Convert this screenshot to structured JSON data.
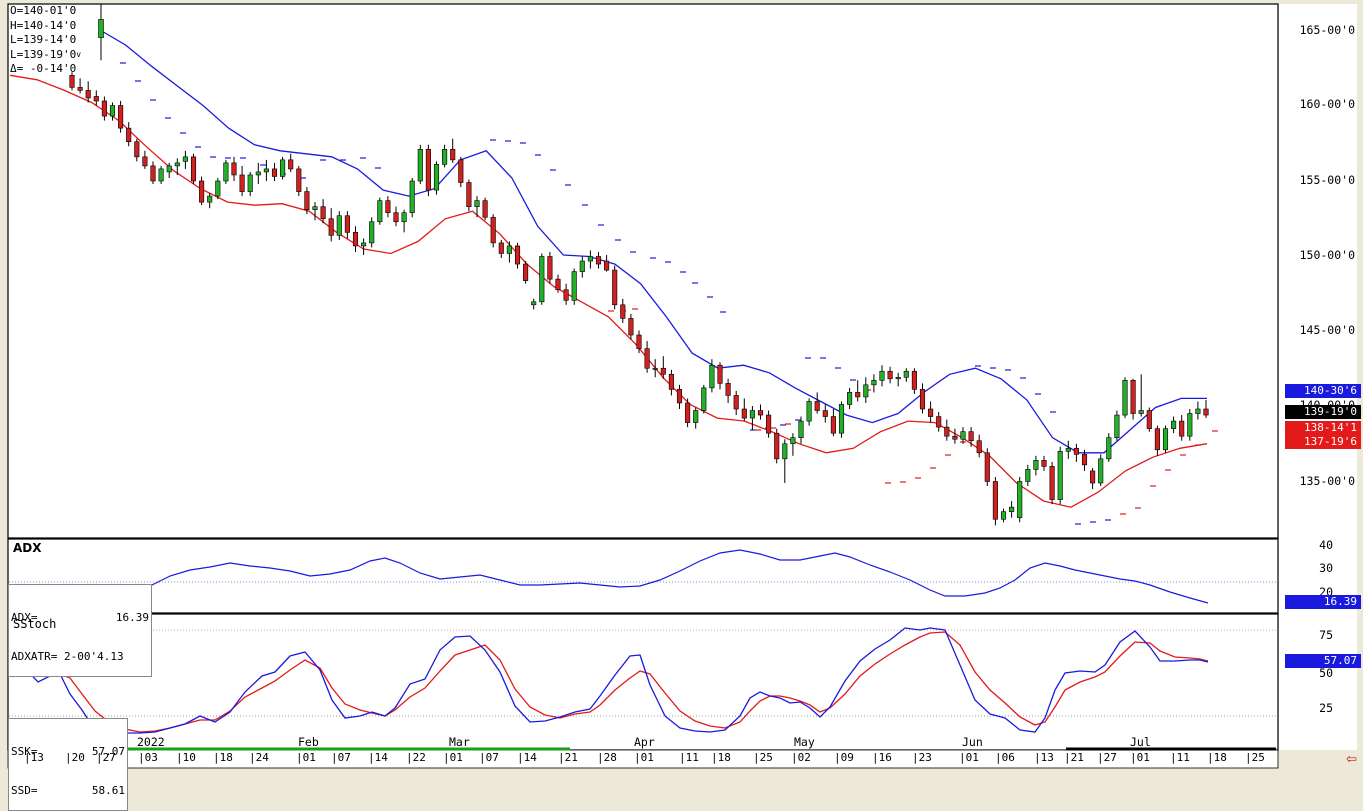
{
  "ohlc_box": {
    "open": "O=140-01'0",
    "high": "H=140-14'0",
    "low": "L=139-14'0",
    "last": "L=139-19'0",
    "last_flag": "v",
    "change": "Δ= -0-14'0"
  },
  "price_tags": {
    "upper": "140-30'6",
    "current": "139-19'0",
    "lower1": "138-14'1",
    "lower2": "137-19'6"
  },
  "adx_panel": {
    "title": "ADX",
    "adx_label": "ADX=",
    "adx_value": "16.39",
    "adxatr_label": "ADXATR=",
    "adxatr_value": "2-00'4.13",
    "tag": "16.39",
    "axis": [
      "40",
      "30",
      "20"
    ]
  },
  "stoch_panel": {
    "title": "SStoch",
    "ssk_label": "SSK=",
    "ssk_value": "57.07",
    "ssd_label": "SSD=",
    "ssd_value": "58.61",
    "tag": "57.07",
    "axis": [
      "75",
      "50",
      "25"
    ]
  },
  "colors": {
    "up": "#22b02a",
    "down": "#d02020",
    "upper_band": "#1a1adf",
    "lower_band": "#e21a1a",
    "tag_blue": "#1a1adf",
    "tag_red": "#e21a1a",
    "tag_black": "#000000"
  },
  "x_axis": {
    "year": "2022",
    "months": [
      "Feb",
      "Mar",
      "Apr",
      "May",
      "Jun",
      "Jul"
    ],
    "ticks": [
      "13",
      "20",
      "27",
      "03",
      "10",
      "18",
      "24",
      "01",
      "07",
      "14",
      "22",
      "01",
      "07",
      "14",
      "21",
      "28",
      "01",
      "11",
      "18",
      "25",
      "02",
      "09",
      "16",
      "23",
      "01",
      "06",
      "13",
      "21",
      "27",
      "01",
      "11",
      "18",
      "25"
    ]
  },
  "chart_data": {
    "type": "candlestick",
    "price_axis": [
      "165-00'0",
      "160-00'0",
      "155-00'0",
      "150-00'0",
      "145-00'0",
      "140-00'0",
      "135-00'0"
    ],
    "ylim": [
      132,
      167
    ],
    "last_bar": {
      "open": 140.03,
      "high": 140.44,
      "low": 139.44,
      "close": 139.59
    },
    "candles": [
      [
        162.0,
        162.2,
        161.0,
        161.2
      ],
      [
        161.2,
        161.8,
        160.8,
        161.0
      ],
      [
        161.0,
        161.6,
        160.2,
        160.5
      ],
      [
        160.6,
        161.0,
        160.0,
        160.3
      ],
      [
        160.3,
        160.6,
        159.0,
        159.3
      ],
      [
        159.3,
        160.2,
        159.0,
        160.0
      ],
      [
        160.0,
        160.3,
        158.2,
        158.5
      ],
      [
        158.5,
        158.9,
        157.3,
        157.6
      ],
      [
        157.6,
        157.8,
        156.3,
        156.6
      ],
      [
        156.6,
        157.0,
        155.8,
        156.0
      ],
      [
        156.0,
        156.3,
        154.8,
        155.0
      ],
      [
        155.0,
        156.0,
        154.8,
        155.8
      ],
      [
        155.6,
        156.2,
        155.2,
        156.0
      ],
      [
        156.0,
        156.5,
        155.4,
        156.2
      ],
      [
        156.3,
        157.0,
        155.8,
        156.6
      ],
      [
        156.6,
        156.8,
        154.8,
        155.0
      ],
      [
        155.0,
        155.3,
        153.4,
        153.6
      ],
      [
        153.6,
        154.2,
        153.2,
        154.0
      ],
      [
        154.0,
        155.2,
        153.8,
        155.0
      ],
      [
        155.0,
        156.4,
        154.8,
        156.2
      ],
      [
        156.2,
        156.6,
        155.0,
        155.4
      ],
      [
        155.4,
        156.0,
        154.0,
        154.3
      ],
      [
        154.3,
        155.6,
        154.0,
        155.4
      ],
      [
        155.4,
        156.2,
        154.8,
        155.6
      ],
      [
        155.6,
        156.4,
        155.0,
        155.8
      ],
      [
        155.8,
        156.2,
        155.0,
        155.3
      ],
      [
        155.3,
        156.6,
        155.1,
        156.4
      ],
      [
        156.4,
        156.8,
        155.6,
        155.8
      ],
      [
        155.8,
        156.0,
        154.0,
        154.3
      ],
      [
        154.3,
        154.6,
        152.8,
        153.1
      ],
      [
        153.1,
        153.6,
        152.4,
        153.3
      ],
      [
        153.3,
        153.8,
        152.2,
        152.5
      ],
      [
        152.5,
        153.2,
        151.0,
        151.4
      ],
      [
        151.4,
        153.0,
        151.1,
        152.7
      ],
      [
        152.7,
        153.0,
        151.2,
        151.6
      ],
      [
        151.6,
        152.0,
        150.3,
        150.7
      ],
      [
        150.7,
        151.2,
        150.1,
        150.9
      ],
      [
        150.9,
        152.6,
        150.6,
        152.3
      ],
      [
        152.3,
        153.9,
        152.1,
        153.7
      ],
      [
        153.7,
        154.0,
        152.6,
        152.9
      ],
      [
        152.9,
        153.3,
        152.0,
        152.3
      ],
      [
        152.3,
        153.1,
        151.6,
        152.9
      ],
      [
        152.9,
        155.2,
        152.6,
        155.0
      ],
      [
        155.0,
        157.4,
        154.8,
        157.1
      ],
      [
        157.1,
        157.4,
        154.0,
        154.4
      ],
      [
        154.4,
        156.3,
        154.1,
        156.1
      ],
      [
        156.1,
        157.4,
        155.9,
        157.1
      ],
      [
        157.1,
        157.8,
        156.2,
        156.4
      ],
      [
        156.4,
        156.6,
        154.6,
        154.9
      ],
      [
        154.9,
        155.1,
        153.0,
        153.3
      ],
      [
        153.3,
        154.0,
        152.6,
        153.7
      ],
      [
        153.7,
        153.9,
        152.4,
        152.6
      ],
      [
        152.6,
        152.8,
        150.6,
        150.9
      ],
      [
        150.9,
        151.1,
        149.9,
        150.2
      ],
      [
        150.2,
        151.0,
        149.6,
        150.7
      ],
      [
        150.7,
        150.9,
        149.2,
        149.5
      ],
      [
        149.5,
        149.7,
        148.2,
        148.4
      ],
      [
        146.8,
        147.2,
        146.5,
        147.0
      ],
      [
        147.0,
        150.2,
        146.8,
        150.0
      ],
      [
        150.0,
        150.3,
        148.2,
        148.5
      ],
      [
        148.5,
        148.8,
        147.6,
        147.8
      ],
      [
        147.8,
        148.2,
        146.8,
        147.1
      ],
      [
        147.1,
        149.2,
        146.8,
        149.0
      ],
      [
        149.0,
        150.0,
        148.6,
        149.7
      ],
      [
        149.7,
        150.4,
        149.2,
        150.0
      ],
      [
        150.0,
        150.3,
        149.2,
        149.5
      ],
      [
        149.7,
        150.1,
        149.0,
        149.1
      ],
      [
        149.1,
        149.4,
        146.5,
        146.8
      ],
      [
        146.8,
        147.2,
        145.6,
        145.9
      ],
      [
        145.9,
        146.2,
        144.5,
        144.8
      ],
      [
        144.8,
        145.1,
        143.6,
        143.9
      ],
      [
        143.9,
        144.4,
        142.3,
        142.6
      ],
      [
        142.6,
        143.2,
        142.0,
        142.6
      ],
      [
        142.6,
        143.4,
        141.9,
        142.2
      ],
      [
        142.2,
        142.5,
        140.8,
        141.2
      ],
      [
        141.2,
        141.5,
        139.9,
        140.3
      ],
      [
        140.3,
        140.6,
        138.7,
        139.0
      ],
      [
        139.0,
        140.0,
        138.6,
        139.8
      ],
      [
        139.8,
        141.5,
        139.6,
        141.3
      ],
      [
        141.3,
        143.2,
        141.0,
        142.8
      ],
      [
        142.8,
        143.0,
        141.2,
        141.6
      ],
      [
        141.6,
        141.9,
        140.3,
        140.8
      ],
      [
        140.8,
        141.1,
        139.5,
        139.9
      ],
      [
        139.9,
        140.6,
        139.1,
        139.3
      ],
      [
        139.3,
        140.1,
        138.5,
        139.8
      ],
      [
        139.8,
        140.2,
        139.2,
        139.5
      ],
      [
        139.5,
        139.8,
        138.0,
        138.3
      ],
      [
        138.3,
        138.6,
        136.3,
        136.6
      ],
      [
        136.6,
        137.9,
        135.0,
        137.6
      ],
      [
        137.6,
        138.3,
        136.8,
        138.0
      ],
      [
        138.0,
        139.4,
        137.6,
        139.1
      ],
      [
        139.1,
        140.6,
        138.8,
        140.4
      ],
      [
        140.4,
        141.0,
        139.6,
        139.8
      ],
      [
        139.8,
        140.2,
        139.0,
        139.4
      ],
      [
        139.4,
        139.9,
        138.1,
        138.3
      ],
      [
        138.3,
        140.4,
        138.0,
        140.2
      ],
      [
        140.2,
        141.3,
        139.9,
        141.0
      ],
      [
        141.0,
        141.8,
        140.4,
        140.7
      ],
      [
        140.7,
        142.0,
        140.3,
        141.5
      ],
      [
        141.5,
        142.2,
        141.0,
        141.8
      ],
      [
        141.8,
        142.8,
        141.4,
        142.4
      ],
      [
        142.4,
        142.7,
        141.6,
        141.9
      ],
      [
        141.9,
        142.3,
        141.4,
        142.0
      ],
      [
        142.0,
        142.6,
        141.7,
        142.4
      ],
      [
        142.4,
        142.6,
        140.9,
        141.2
      ],
      [
        141.2,
        141.6,
        139.6,
        139.9
      ],
      [
        139.9,
        140.4,
        139.0,
        139.4
      ],
      [
        139.4,
        139.7,
        138.4,
        138.7
      ],
      [
        138.7,
        139.2,
        137.8,
        138.1
      ],
      [
        138.1,
        138.6,
        137.6,
        137.9
      ],
      [
        137.9,
        138.7,
        137.6,
        138.4
      ],
      [
        138.4,
        138.7,
        137.4,
        137.8
      ],
      [
        137.8,
        138.2,
        136.7,
        137.0
      ],
      [
        137.0,
        137.3,
        134.8,
        135.1
      ],
      [
        135.1,
        135.4,
        132.2,
        132.6
      ],
      [
        132.6,
        133.3,
        132.4,
        133.1
      ],
      [
        133.1,
        133.8,
        132.7,
        133.4
      ],
      [
        132.7,
        135.4,
        132.4,
        135.1
      ],
      [
        135.1,
        136.2,
        134.8,
        135.9
      ],
      [
        135.9,
        136.8,
        135.5,
        136.5
      ],
      [
        136.5,
        136.8,
        135.8,
        136.1
      ],
      [
        136.1,
        136.4,
        133.6,
        133.9
      ],
      [
        133.9,
        137.4,
        133.6,
        137.1
      ],
      [
        137.1,
        137.8,
        136.6,
        137.3
      ],
      [
        137.3,
        137.6,
        136.4,
        136.9
      ],
      [
        136.9,
        137.2,
        135.8,
        136.2
      ],
      [
        135.8,
        136.0,
        134.6,
        135.0
      ],
      [
        135.0,
        136.9,
        134.8,
        136.6
      ],
      [
        136.6,
        138.3,
        136.4,
        138.0
      ],
      [
        138.0,
        139.8,
        137.8,
        139.5
      ],
      [
        139.5,
        142.0,
        139.3,
        141.8
      ],
      [
        141.8,
        141.9,
        139.2,
        139.6
      ],
      [
        139.6,
        142.2,
        139.4,
        139.8
      ],
      [
        139.8,
        140.0,
        138.4,
        138.6
      ],
      [
        138.6,
        138.8,
        136.8,
        137.2
      ],
      [
        137.2,
        138.8,
        137.0,
        138.6
      ],
      [
        138.6,
        139.4,
        138.3,
        139.1
      ],
      [
        139.1,
        139.5,
        137.8,
        138.1
      ],
      [
        138.1,
        139.9,
        137.8,
        139.6
      ],
      [
        139.6,
        140.4,
        139.2,
        139.9
      ],
      [
        139.9,
        140.5,
        139.3,
        139.5
      ]
    ],
    "first_candle": [
      164.5,
      166.7,
      163.0,
      165.7
    ],
    "upper_band": [
      165.0,
      164.0,
      162.6,
      161.3,
      160.0,
      158.5,
      157.4,
      157.0,
      156.8,
      156.6,
      155.8,
      154.4,
      154.0,
      154.5,
      156.4,
      157.0,
      155.2,
      152.0,
      150.1,
      150.0,
      149.5,
      148.2,
      146.0,
      143.6,
      142.6,
      142.8,
      142.3,
      141.3,
      140.4,
      139.5,
      139.0,
      139.6,
      141.0,
      142.2,
      142.6,
      141.9,
      140.5,
      138.0,
      137.0,
      137.0,
      138.5,
      140.0,
      140.6,
      140.6
    ],
    "lower_band": [
      162.0,
      161.7,
      161.0,
      160.2,
      159.0,
      157.3,
      155.7,
      154.5,
      153.6,
      153.4,
      153.5,
      153.0,
      151.6,
      150.5,
      150.2,
      151.0,
      152.5,
      153.0,
      151.5,
      149.5,
      148.0,
      147.0,
      146.0,
      144.2,
      142.0,
      140.2,
      139.3,
      139.1,
      138.4,
      137.6,
      137.0,
      137.3,
      138.4,
      139.1,
      139.0,
      138.0,
      136.8,
      135.0,
      133.8,
      133.4,
      134.4,
      135.8,
      136.7,
      137.3,
      137.6
    ]
  }
}
